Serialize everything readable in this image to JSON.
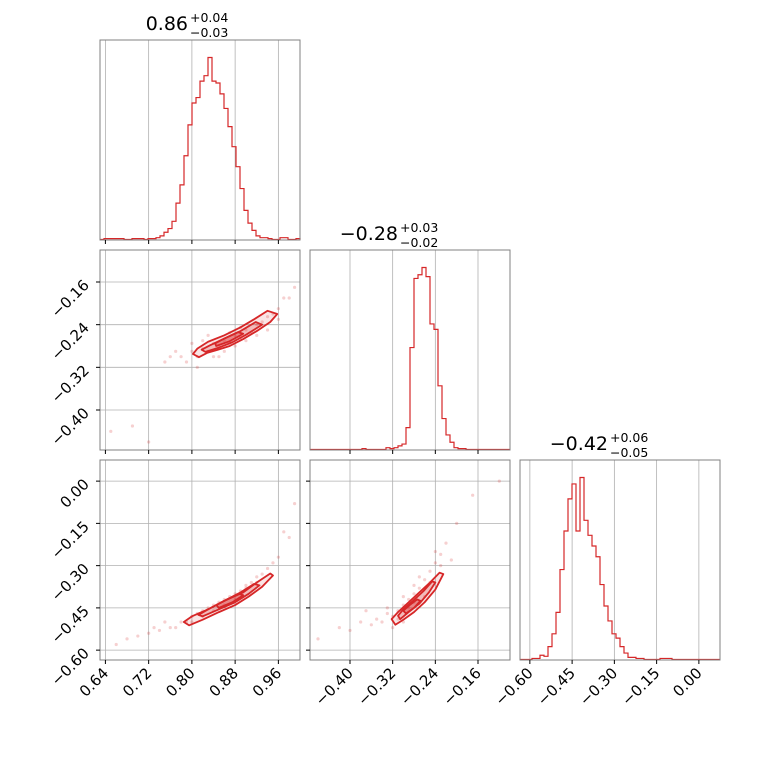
{
  "chart_data": {
    "type": "corner",
    "color": "#d62728",
    "grid": true,
    "parameters": [
      {
        "median": 0.86,
        "err_plus": 0.04,
        "err_minus": 0.03,
        "title_main": "0.86",
        "title_plus": "+0.04",
        "title_minus": "−0.03",
        "range": [
          0.63,
          1.0
        ],
        "ticks": [
          0.64,
          0.72,
          0.8,
          0.88,
          0.96
        ],
        "tick_labels": [
          "0.64",
          "0.72",
          "0.80",
          "0.88",
          "0.96"
        ]
      },
      {
        "median": -0.28,
        "err_plus": 0.03,
        "err_minus": 0.02,
        "title_main": "−0.28",
        "title_plus": "+0.03",
        "title_minus": "−0.02",
        "range": [
          -0.475,
          -0.1
        ],
        "ticks": [
          -0.4,
          -0.32,
          -0.24,
          -0.16
        ],
        "tick_labels": [
          "−0.40",
          "−0.32",
          "−0.24",
          "−0.16"
        ]
      },
      {
        "median": -0.42,
        "err_plus": 0.06,
        "err_minus": 0.05,
        "title_main": "−0.42",
        "title_plus": "+0.06",
        "title_minus": "−0.05",
        "range": [
          -0.635,
          0.075
        ],
        "ticks": [
          -0.6,
          -0.45,
          -0.3,
          -0.15,
          0.0
        ],
        "tick_labels": [
          "−0.60",
          "−0.45",
          "−0.30",
          "−0.15",
          "0.00"
        ]
      }
    ],
    "histograms": [
      {
        "parameter": 0,
        "bin_start": 0.63,
        "bin_width": 0.0074,
        "counts": [
          0,
          0.5,
          0.5,
          0.5,
          0.5,
          0.5,
          0,
          0,
          0.5,
          0.5,
          0.5,
          0,
          0.5,
          0.5,
          1,
          2,
          4,
          6,
          10,
          20,
          30,
          46,
          63,
          75,
          78,
          87,
          90,
          100,
          87,
          86,
          80,
          72,
          62,
          51,
          40,
          28,
          16,
          9,
          5,
          2,
          1,
          1,
          0.5,
          0,
          0,
          1,
          1,
          0,
          0,
          0.5
        ]
      },
      {
        "parameter": 1,
        "bin_start": -0.475,
        "bin_width": 0.0075,
        "counts": [
          0,
          0,
          0,
          0,
          0,
          0,
          0,
          0,
          0,
          0,
          0,
          0,
          0,
          0.5,
          0,
          0,
          0,
          0,
          0,
          1,
          0.5,
          1,
          2,
          3,
          12,
          56,
          94,
          96,
          100,
          95,
          69,
          66,
          35,
          17,
          8,
          4,
          1,
          0.5,
          0.5,
          0,
          0,
          0,
          0,
          0,
          0,
          0,
          0,
          0,
          0,
          0
        ]
      },
      {
        "parameter": 2,
        "bin_start": -0.635,
        "bin_width": 0.0142,
        "counts": [
          0,
          0,
          0,
          0.5,
          0.5,
          2,
          1.5,
          6,
          12,
          22,
          42,
          60,
          75,
          82,
          60,
          85,
          65,
          58,
          53,
          48,
          35,
          25,
          18,
          12,
          10,
          6,
          3,
          1,
          1,
          0.5,
          0.5,
          0,
          0,
          0,
          0,
          0.5,
          0.5,
          0.5,
          0,
          0,
          0,
          0,
          0,
          0,
          0,
          0,
          0,
          0,
          0,
          0
        ]
      }
    ],
    "scatter_panels": [
      {
        "x_param": 0,
        "y_param": 1,
        "points": [
          [
            0.8,
            -0.29
          ],
          [
            0.82,
            -0.285
          ],
          [
            0.84,
            -0.275
          ],
          [
            0.86,
            -0.27
          ],
          [
            0.88,
            -0.26
          ],
          [
            0.9,
            -0.25
          ],
          [
            0.92,
            -0.24
          ],
          [
            0.94,
            -0.225
          ],
          [
            0.96,
            -0.21
          ],
          [
            0.98,
            -0.19
          ],
          [
            0.99,
            -0.17
          ],
          [
            0.97,
            -0.19
          ],
          [
            0.95,
            -0.22
          ],
          [
            0.78,
            -0.3
          ],
          [
            0.77,
            -0.29
          ],
          [
            0.79,
            -0.31
          ],
          [
            0.81,
            -0.3
          ],
          [
            0.83,
            -0.29
          ],
          [
            0.85,
            -0.28
          ],
          [
            0.87,
            -0.275
          ],
          [
            0.89,
            -0.265
          ],
          [
            0.91,
            -0.255
          ],
          [
            0.93,
            -0.235
          ],
          [
            0.84,
            -0.3
          ],
          [
            0.86,
            -0.29
          ],
          [
            0.88,
            -0.28
          ],
          [
            0.82,
            -0.27
          ],
          [
            0.8,
            -0.275
          ],
          [
            0.76,
            -0.3
          ],
          [
            0.75,
            -0.31
          ],
          [
            0.9,
            -0.27
          ],
          [
            0.92,
            -0.26
          ],
          [
            0.65,
            -0.44
          ],
          [
            0.69,
            -0.43
          ],
          [
            0.72,
            -0.46
          ],
          [
            0.81,
            -0.32
          ],
          [
            0.85,
            -0.3
          ],
          [
            0.94,
            -0.25
          ],
          [
            0.96,
            -0.23
          ],
          [
            0.87,
            -0.255
          ],
          [
            0.83,
            -0.26
          ],
          [
            0.89,
            -0.245
          ]
        ],
        "contour_levels": [
          [
            [
              0.813,
              -0.301
            ],
            [
              0.828,
              -0.293
            ],
            [
              0.848,
              -0.287
            ],
            [
              0.87,
              -0.28
            ],
            [
              0.895,
              -0.267
            ],
            [
              0.92,
              -0.252
            ],
            [
              0.945,
              -0.235
            ],
            [
              0.958,
              -0.22
            ],
            [
              0.94,
              -0.214
            ],
            [
              0.915,
              -0.23
            ],
            [
              0.89,
              -0.245
            ],
            [
              0.86,
              -0.26
            ],
            [
              0.83,
              -0.272
            ],
            [
              0.81,
              -0.285
            ],
            [
              0.802,
              -0.295
            ],
            [
              0.813,
              -0.301
            ]
          ],
          [
            [
              0.825,
              -0.291
            ],
            [
              0.85,
              -0.283
            ],
            [
              0.875,
              -0.273
            ],
            [
              0.9,
              -0.259
            ],
            [
              0.93,
              -0.24
            ],
            [
              0.918,
              -0.235
            ],
            [
              0.89,
              -0.252
            ],
            [
              0.86,
              -0.266
            ],
            [
              0.833,
              -0.279
            ],
            [
              0.818,
              -0.287
            ],
            [
              0.825,
              -0.291
            ]
          ],
          [
            [
              0.845,
              -0.28
            ],
            [
              0.87,
              -0.271
            ],
            [
              0.895,
              -0.257
            ],
            [
              0.885,
              -0.254
            ],
            [
              0.86,
              -0.266
            ],
            [
              0.843,
              -0.275
            ],
            [
              0.845,
              -0.28
            ]
          ]
        ]
      },
      {
        "x_param": 0,
        "y_param": 2,
        "points": [
          [
            0.76,
            -0.52
          ],
          [
            0.78,
            -0.5
          ],
          [
            0.8,
            -0.48
          ],
          [
            0.82,
            -0.46
          ],
          [
            0.84,
            -0.44
          ],
          [
            0.86,
            -0.42
          ],
          [
            0.88,
            -0.4
          ],
          [
            0.9,
            -0.37
          ],
          [
            0.92,
            -0.34
          ],
          [
            0.94,
            -0.31
          ],
          [
            0.96,
            -0.27
          ],
          [
            0.98,
            -0.2
          ],
          [
            0.99,
            -0.08
          ],
          [
            0.97,
            -0.18
          ],
          [
            0.95,
            -0.29
          ],
          [
            0.74,
            -0.53
          ],
          [
            0.72,
            -0.54
          ],
          [
            0.7,
            -0.55
          ],
          [
            0.68,
            -0.56
          ],
          [
            0.66,
            -0.58
          ],
          [
            0.79,
            -0.5
          ],
          [
            0.81,
            -0.47
          ],
          [
            0.83,
            -0.45
          ],
          [
            0.85,
            -0.43
          ],
          [
            0.87,
            -0.41
          ],
          [
            0.89,
            -0.39
          ],
          [
            0.91,
            -0.36
          ],
          [
            0.93,
            -0.33
          ],
          [
            0.8,
            -0.5
          ],
          [
            0.82,
            -0.48
          ],
          [
            0.84,
            -0.46
          ],
          [
            0.86,
            -0.44
          ],
          [
            0.88,
            -0.42
          ],
          [
            0.9,
            -0.38
          ],
          [
            0.92,
            -0.36
          ],
          [
            0.77,
            -0.52
          ],
          [
            0.75,
            -0.5
          ],
          [
            0.73,
            -0.52
          ]
        ],
        "contour_levels": [
          [
            [
              0.795,
              -0.512
            ],
            [
              0.82,
              -0.492
            ],
            [
              0.85,
              -0.465
            ],
            [
              0.88,
              -0.44
            ],
            [
              0.905,
              -0.41
            ],
            [
              0.93,
              -0.375
            ],
            [
              0.95,
              -0.335
            ],
            [
              0.945,
              -0.328
            ],
            [
              0.92,
              -0.36
            ],
            [
              0.895,
              -0.395
            ],
            [
              0.86,
              -0.425
            ],
            [
              0.83,
              -0.455
            ],
            [
              0.8,
              -0.48
            ],
            [
              0.785,
              -0.5
            ],
            [
              0.795,
              -0.512
            ]
          ],
          [
            [
              0.82,
              -0.48
            ],
            [
              0.85,
              -0.455
            ],
            [
              0.88,
              -0.43
            ],
            [
              0.905,
              -0.4
            ],
            [
              0.925,
              -0.37
            ],
            [
              0.915,
              -0.365
            ],
            [
              0.89,
              -0.395
            ],
            [
              0.86,
              -0.425
            ],
            [
              0.83,
              -0.455
            ],
            [
              0.812,
              -0.475
            ],
            [
              0.82,
              -0.48
            ]
          ],
          [
            [
              0.85,
              -0.45
            ],
            [
              0.875,
              -0.43
            ],
            [
              0.895,
              -0.405
            ],
            [
              0.887,
              -0.4
            ],
            [
              0.865,
              -0.42
            ],
            [
              0.845,
              -0.44
            ],
            [
              0.85,
              -0.45
            ]
          ]
        ]
      },
      {
        "x_param": 1,
        "y_param": 2,
        "points": [
          [
            -0.32,
            -0.48
          ],
          [
            -0.31,
            -0.46
          ],
          [
            -0.3,
            -0.44
          ],
          [
            -0.29,
            -0.42
          ],
          [
            -0.28,
            -0.4
          ],
          [
            -0.27,
            -0.38
          ],
          [
            -0.26,
            -0.35
          ],
          [
            -0.25,
            -0.32
          ],
          [
            -0.24,
            -0.29
          ],
          [
            -0.23,
            -0.26
          ],
          [
            -0.22,
            -0.22
          ],
          [
            -0.2,
            -0.15
          ],
          [
            -0.17,
            -0.05
          ],
          [
            -0.12,
            0.0
          ],
          [
            -0.34,
            -0.5
          ],
          [
            -0.35,
            -0.49
          ],
          [
            -0.36,
            -0.51
          ],
          [
            -0.38,
            -0.5
          ],
          [
            -0.4,
            -0.53
          ],
          [
            -0.33,
            -0.47
          ],
          [
            -0.31,
            -0.49
          ],
          [
            -0.29,
            -0.45
          ],
          [
            -0.28,
            -0.43
          ],
          [
            -0.26,
            -0.41
          ],
          [
            -0.25,
            -0.36
          ],
          [
            -0.27,
            -0.34
          ],
          [
            -0.3,
            -0.5
          ],
          [
            -0.32,
            -0.52
          ],
          [
            -0.33,
            -0.45
          ],
          [
            -0.37,
            -0.46
          ],
          [
            -0.42,
            -0.52
          ],
          [
            -0.46,
            -0.56
          ],
          [
            -0.23,
            -0.3
          ],
          [
            -0.21,
            -0.28
          ],
          [
            -0.24,
            -0.25
          ],
          [
            -0.28,
            -0.37
          ],
          [
            -0.3,
            -0.41
          ]
        ],
        "contour_levels": [
          [
            [
              -0.315,
              -0.51
            ],
            [
              -0.3,
              -0.492
            ],
            [
              -0.28,
              -0.465
            ],
            [
              -0.26,
              -0.43
            ],
            [
              -0.24,
              -0.385
            ],
            [
              -0.225,
              -0.33
            ],
            [
              -0.232,
              -0.325
            ],
            [
              -0.25,
              -0.36
            ],
            [
              -0.27,
              -0.395
            ],
            [
              -0.29,
              -0.43
            ],
            [
              -0.31,
              -0.465
            ],
            [
              -0.322,
              -0.49
            ],
            [
              -0.315,
              -0.51
            ]
          ],
          [
            [
              -0.306,
              -0.49
            ],
            [
              -0.29,
              -0.465
            ],
            [
              -0.27,
              -0.435
            ],
            [
              -0.252,
              -0.395
            ],
            [
              -0.24,
              -0.36
            ],
            [
              -0.246,
              -0.356
            ],
            [
              -0.262,
              -0.39
            ],
            [
              -0.282,
              -0.425
            ],
            [
              -0.3,
              -0.455
            ],
            [
              -0.31,
              -0.478
            ],
            [
              -0.306,
              -0.49
            ]
          ],
          [
            [
              -0.295,
              -0.47
            ],
            [
              -0.28,
              -0.45
            ],
            [
              -0.268,
              -0.425
            ],
            [
              -0.274,
              -0.42
            ],
            [
              -0.288,
              -0.44
            ],
            [
              -0.3,
              -0.46
            ],
            [
              -0.295,
              -0.47
            ]
          ]
        ]
      }
    ]
  }
}
